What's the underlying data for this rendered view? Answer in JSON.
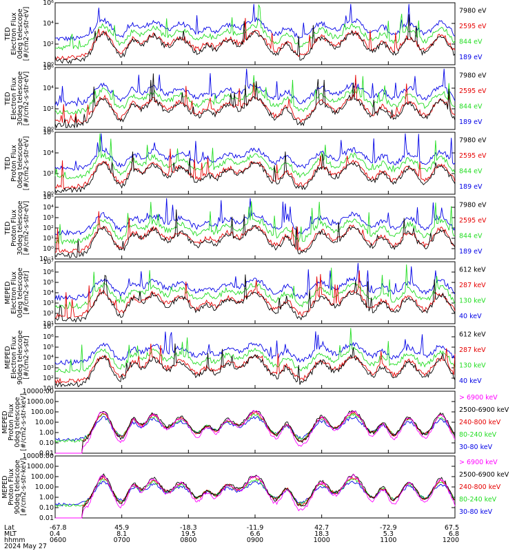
{
  "colors": {
    "black": "#000000",
    "red": "#e60000",
    "green": "#22dd22",
    "blue": "#0000e6",
    "magenta": "#ff00ff"
  },
  "chart_data": [
    {
      "type": "line",
      "id": "p1",
      "ylabels": [
        "TED",
        "Electron Flux",
        "0deg telescope",
        "[#/cm2-s-str-eV]"
      ],
      "scale": "log",
      "ylim": [
        1,
        1000000
      ],
      "yticks": [
        {
          "v": 1,
          "t": "10⁰"
        },
        {
          "v": 100,
          "t": "10²"
        },
        {
          "v": 10000,
          "t": "10⁴"
        },
        {
          "v": 1000000,
          "t": "10⁶"
        }
      ],
      "series": [
        {
          "name": "7980 eV",
          "color": "black"
        },
        {
          "name": "2595 eV",
          "color": "red"
        },
        {
          "name": "844 eV",
          "color": "green"
        },
        {
          "name": "189 eV",
          "color": "blue"
        }
      ]
    },
    {
      "type": "line",
      "id": "p2",
      "ylabels": [
        "TED",
        "Electron Flux",
        "30deg telescope",
        "[#/cm2-s-str-eV]"
      ],
      "scale": "log",
      "ylim": [
        1,
        1000000
      ],
      "yticks": [
        {
          "v": 1,
          "t": "10⁰"
        },
        {
          "v": 100,
          "t": "10²"
        },
        {
          "v": 10000,
          "t": "10⁴"
        },
        {
          "v": 1000000,
          "t": "10⁶"
        }
      ],
      "series": [
        {
          "name": "7980 eV",
          "color": "black"
        },
        {
          "name": "2595 eV",
          "color": "red"
        },
        {
          "name": "844 eV",
          "color": "green"
        },
        {
          "name": "189 eV",
          "color": "blue"
        }
      ]
    },
    {
      "type": "line",
      "id": "p3",
      "ylabels": [
        "TED",
        "Proton Flux",
        "0deg telescope",
        "[#/cm2-s-str-eV]"
      ],
      "scale": "log",
      "ylim": [
        1,
        1000000
      ],
      "yticks": [
        {
          "v": 1,
          "t": "10⁰"
        },
        {
          "v": 100,
          "t": "10²"
        },
        {
          "v": 10000,
          "t": "10⁴"
        },
        {
          "v": 1000000,
          "t": "10⁶"
        }
      ],
      "series": [
        {
          "name": "7980 eV",
          "color": "black"
        },
        {
          "name": "2595 eV",
          "color": "red"
        },
        {
          "name": "844 eV",
          "color": "green"
        },
        {
          "name": "189 eV",
          "color": "blue"
        }
      ]
    },
    {
      "type": "line",
      "id": "p4",
      "ylabels": [
        "TED",
        "Proton Flux",
        "30deg telescope",
        "[#/cm2-s-str-eV]"
      ],
      "scale": "log",
      "ylim": [
        0.1,
        100000
      ],
      "yticks": [
        {
          "v": 0.1,
          "t": "10⁻¹"
        },
        {
          "v": 1,
          "t": "10⁰"
        },
        {
          "v": 10,
          "t": "10¹"
        },
        {
          "v": 100,
          "t": "10²"
        },
        {
          "v": 1000,
          "t": "10³"
        },
        {
          "v": 10000,
          "t": "10⁴"
        },
        {
          "v": 100000,
          "t": "10⁵"
        }
      ],
      "series": [
        {
          "name": "7980 eV",
          "color": "black"
        },
        {
          "name": "2595 eV",
          "color": "red"
        },
        {
          "name": "844 eV",
          "color": "green"
        },
        {
          "name": "189 eV",
          "color": "blue"
        }
      ]
    },
    {
      "type": "line",
      "id": "p5",
      "ylabels": [
        "MEPED",
        "Electron Flux",
        "0deg telescope",
        "[#/cm2-s-str]"
      ],
      "scale": "log",
      "ylim": [
        10,
        10000000
      ],
      "yticks": [
        {
          "v": 10,
          "t": "10¹"
        },
        {
          "v": 100,
          "t": "10²"
        },
        {
          "v": 1000,
          "t": "10³"
        },
        {
          "v": 10000,
          "t": "10⁴"
        },
        {
          "v": 100000,
          "t": "10⁵"
        },
        {
          "v": 1000000,
          "t": "10⁶"
        },
        {
          "v": 10000000,
          "t": "10⁷"
        }
      ],
      "series": [
        {
          "name": "612 keV",
          "color": "black"
        },
        {
          "name": "287 keV",
          "color": "red"
        },
        {
          "name": "130 keV",
          "color": "green"
        },
        {
          "name": "40 keV",
          "color": "blue"
        }
      ]
    },
    {
      "type": "line",
      "id": "p6",
      "ylabels": [
        "MEPED",
        "Electron Flux",
        "90deg telescope",
        "[#/cm2-s-str]"
      ],
      "scale": "log",
      "ylim": [
        10,
        10000000
      ],
      "yticks": [
        {
          "v": 10,
          "t": "10¹"
        },
        {
          "v": 100,
          "t": "10²"
        },
        {
          "v": 1000,
          "t": "10³"
        },
        {
          "v": 10000,
          "t": "10⁴"
        },
        {
          "v": 100000,
          "t": "10⁵"
        },
        {
          "v": 1000000,
          "t": "10⁶"
        },
        {
          "v": 10000000,
          "t": "10⁷"
        }
      ],
      "series": [
        {
          "name": "612 keV",
          "color": "black"
        },
        {
          "name": "287 keV",
          "color": "red"
        },
        {
          "name": "130 keV",
          "color": "green"
        },
        {
          "name": "40 keV",
          "color": "blue"
        }
      ]
    },
    {
      "type": "line",
      "id": "p7",
      "ylabels": [
        "MEPED",
        "Proton Flux",
        "0deg telescope",
        "[#/cm2-s-str-keV]"
      ],
      "scale": "log",
      "ylim": [
        0.01,
        10000
      ],
      "yticks": [
        {
          "v": 0.01,
          "t": "0.01"
        },
        {
          "v": 0.1,
          "t": "0.10"
        },
        {
          "v": 1,
          "t": "1.00"
        },
        {
          "v": 10,
          "t": "10.00"
        },
        {
          "v": 100,
          "t": "100.00"
        },
        {
          "v": 1000,
          "t": "1000.00"
        },
        {
          "v": 10000,
          "t": "10000.00"
        }
      ],
      "series": [
        {
          "name": "> 6900 keV",
          "color": "magenta"
        },
        {
          "name": "2500-6900 keV",
          "color": "black"
        },
        {
          "name": "240-800 keV",
          "color": "red"
        },
        {
          "name": "80-240 keV",
          "color": "green"
        },
        {
          "name": "30-80 keV",
          "color": "blue"
        }
      ]
    },
    {
      "type": "line",
      "id": "p8",
      "ylabels": [
        "MEPED",
        "Proton Flux",
        "90deg telescope",
        "[#/cm2-s-str-keV]"
      ],
      "scale": "log",
      "ylim": [
        0.01,
        10000
      ],
      "yticks": [
        {
          "v": 0.01,
          "t": "0.01"
        },
        {
          "v": 0.1,
          "t": "0.10"
        },
        {
          "v": 1,
          "t": "1.00"
        },
        {
          "v": 10,
          "t": "10.00"
        },
        {
          "v": 100,
          "t": "100.00"
        },
        {
          "v": 1000,
          "t": "1000.00"
        },
        {
          "v": 10000,
          "t": "10000.00"
        }
      ],
      "series": [
        {
          "name": "> 6900 keV",
          "color": "magenta"
        },
        {
          "name": "2500-6900 keV",
          "color": "black"
        },
        {
          "name": "240-800 keV",
          "color": "red"
        },
        {
          "name": "80-240 keV",
          "color": "green"
        },
        {
          "name": "30-80 keV",
          "color": "blue"
        }
      ]
    }
  ],
  "x_axis": {
    "row_labels": [
      "Lat",
      "MLT",
      "hhmm"
    ],
    "ticks": [
      {
        "lat": "-67.8",
        "mlt": "0.4",
        "hhmm": "0600"
      },
      {
        "lat": "45.9",
        "mlt": "8.1",
        "hhmm": "0700"
      },
      {
        "lat": "-18.3",
        "mlt": "19.5",
        "hhmm": "0800"
      },
      {
        "lat": "-11.9",
        "mlt": "6.6",
        "hhmm": "0900"
      },
      {
        "lat": "42.7",
        "mlt": "18.3",
        "hhmm": "1000"
      },
      {
        "lat": "-72.9",
        "mlt": "5.3",
        "hhmm": "1100"
      },
      {
        "lat": "67.5",
        "mlt": "6.8",
        "hhmm": "1200"
      }
    ],
    "date": "2024 May 27"
  },
  "events": [
    {
      "t": 0.12,
      "w": 0.03,
      "a": 1.0
    },
    {
      "t": 0.195,
      "w": 0.02,
      "a": 0.7
    },
    {
      "t": 0.245,
      "w": 0.03,
      "a": 0.9
    },
    {
      "t": 0.315,
      "w": 0.035,
      "a": 0.8
    },
    {
      "t": 0.38,
      "w": 0.02,
      "a": 0.5
    },
    {
      "t": 0.43,
      "w": 0.028,
      "a": 0.7
    },
    {
      "t": 0.5,
      "w": 0.04,
      "a": 1.0
    },
    {
      "t": 0.58,
      "w": 0.02,
      "a": 0.6
    },
    {
      "t": 0.665,
      "w": 0.03,
      "a": 0.8
    },
    {
      "t": 0.745,
      "w": 0.04,
      "a": 1.0
    },
    {
      "t": 0.82,
      "w": 0.02,
      "a": 0.6
    },
    {
      "t": 0.885,
      "w": 0.03,
      "a": 0.8
    },
    {
      "t": 0.965,
      "w": 0.03,
      "a": 0.9
    }
  ]
}
